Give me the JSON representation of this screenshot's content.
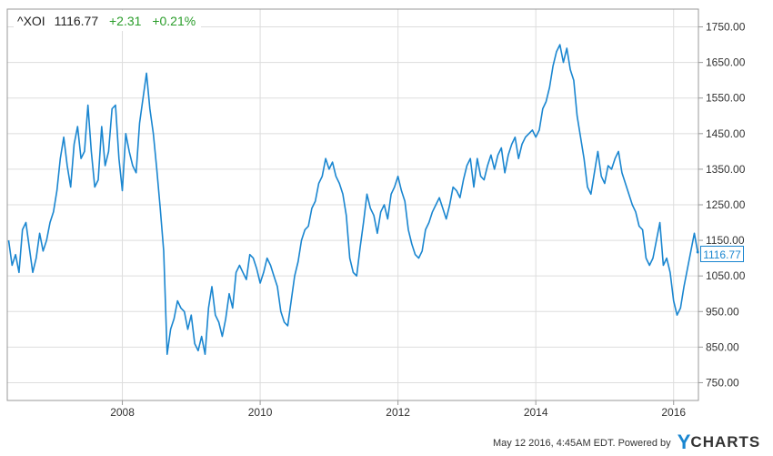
{
  "header": {
    "symbol": "^XOI",
    "price": "1116.77",
    "change": "+2.31",
    "change_pct": "+0.21%",
    "change_color": "#2a9d2a"
  },
  "last_price_tag": "1116.77",
  "footer": {
    "timestamp": "May 12 2016, 4:45AM EDT.",
    "powered_by": "Powered by",
    "brand_y": "Y",
    "brand_rest": "CHARTS"
  },
  "colors": {
    "line": "#1a86d0",
    "grid": "#dddddd",
    "axis": "#999999"
  },
  "chart_data": {
    "type": "line",
    "title": "",
    "xlabel": "",
    "ylabel": "",
    "xlim": [
      2006.33,
      2016.36
    ],
    "ylim": [
      700,
      1800
    ],
    "x_ticks": [
      2008,
      2010,
      2012,
      2014,
      2016
    ],
    "x_tick_labels": [
      "2008",
      "2010",
      "2012",
      "2014",
      "2016"
    ],
    "y_ticks": [
      750,
      850,
      950,
      1050,
      1150,
      1250,
      1350,
      1450,
      1550,
      1650,
      1750
    ],
    "y_tick_labels": [
      "750.00",
      "850.00",
      "950.00",
      "1050.00",
      "1150.00",
      "1250.00",
      "1350.00",
      "1450.00",
      "1550.00",
      "1650.00",
      "1750.00"
    ],
    "grid": true,
    "series": [
      {
        "x": [
          2006.35,
          2006.4,
          2006.45,
          2006.5,
          2006.55,
          2006.6,
          2006.65,
          2006.7,
          2006.75,
          2006.8,
          2006.85,
          2006.9,
          2006.95,
          2007.0,
          2007.05,
          2007.1,
          2007.15,
          2007.2,
          2007.25,
          2007.3,
          2007.35,
          2007.4,
          2007.45,
          2007.5,
          2007.55,
          2007.6,
          2007.65,
          2007.7,
          2007.75,
          2007.8,
          2007.85,
          2007.9,
          2007.95,
          2008.0,
          2008.05,
          2008.1,
          2008.15,
          2008.2,
          2008.25,
          2008.3,
          2008.35,
          2008.4,
          2008.45,
          2008.5,
          2008.55,
          2008.6,
          2008.65,
          2008.7,
          2008.75,
          2008.8,
          2008.85,
          2008.9,
          2008.95,
          2009.0,
          2009.05,
          2009.1,
          2009.15,
          2009.2,
          2009.25,
          2009.3,
          2009.35,
          2009.4,
          2009.45,
          2009.5,
          2009.55,
          2009.6,
          2009.65,
          2009.7,
          2009.75,
          2009.8,
          2009.85,
          2009.9,
          2009.95,
          2010.0,
          2010.05,
          2010.1,
          2010.15,
          2010.2,
          2010.25,
          2010.3,
          2010.35,
          2010.4,
          2010.45,
          2010.5,
          2010.55,
          2010.6,
          2010.65,
          2010.7,
          2010.75,
          2010.8,
          2010.85,
          2010.9,
          2010.95,
          2011.0,
          2011.05,
          2011.1,
          2011.15,
          2011.2,
          2011.25,
          2011.3,
          2011.35,
          2011.4,
          2011.45,
          2011.5,
          2011.55,
          2011.6,
          2011.65,
          2011.7,
          2011.75,
          2011.8,
          2011.85,
          2011.9,
          2011.95,
          2012.0,
          2012.05,
          2012.1,
          2012.15,
          2012.2,
          2012.25,
          2012.3,
          2012.35,
          2012.4,
          2012.45,
          2012.5,
          2012.55,
          2012.6,
          2012.65,
          2012.7,
          2012.75,
          2012.8,
          2012.85,
          2012.9,
          2012.95,
          2013.0,
          2013.05,
          2013.1,
          2013.15,
          2013.2,
          2013.25,
          2013.3,
          2013.35,
          2013.4,
          2013.45,
          2013.5,
          2013.55,
          2013.6,
          2013.65,
          2013.7,
          2013.75,
          2013.8,
          2013.85,
          2013.9,
          2013.95,
          2014.0,
          2014.05,
          2014.1,
          2014.15,
          2014.2,
          2014.25,
          2014.3,
          2014.35,
          2014.4,
          2014.45,
          2014.5,
          2014.55,
          2014.6,
          2014.65,
          2014.7,
          2014.75,
          2014.8,
          2014.85,
          2014.9,
          2014.95,
          2015.0,
          2015.05,
          2015.1,
          2015.15,
          2015.2,
          2015.25,
          2015.3,
          2015.35,
          2015.4,
          2015.45,
          2015.5,
          2015.55,
          2015.6,
          2015.65,
          2015.7,
          2015.75,
          2015.8,
          2015.85,
          2015.9,
          2015.95,
          2016.0,
          2016.05,
          2016.1,
          2016.15,
          2016.2,
          2016.25,
          2016.3,
          2016.35
        ],
        "y": [
          1150,
          1080,
          1110,
          1060,
          1180,
          1200,
          1130,
          1060,
          1100,
          1170,
          1120,
          1150,
          1200,
          1230,
          1290,
          1380,
          1440,
          1360,
          1300,
          1420,
          1470,
          1380,
          1400,
          1530,
          1400,
          1300,
          1320,
          1470,
          1360,
          1400,
          1520,
          1530,
          1380,
          1290,
          1450,
          1400,
          1360,
          1340,
          1480,
          1550,
          1620,
          1520,
          1450,
          1350,
          1240,
          1120,
          830,
          900,
          930,
          980,
          960,
          950,
          900,
          940,
          860,
          840,
          880,
          830,
          960,
          1020,
          940,
          920,
          880,
          930,
          1000,
          960,
          1060,
          1080,
          1060,
          1040,
          1110,
          1100,
          1070,
          1030,
          1060,
          1100,
          1080,
          1050,
          1020,
          950,
          920,
          910,
          980,
          1050,
          1090,
          1150,
          1180,
          1190,
          1240,
          1260,
          1310,
          1330,
          1380,
          1350,
          1370,
          1330,
          1310,
          1280,
          1220,
          1100,
          1060,
          1050,
          1130,
          1200,
          1280,
          1240,
          1220,
          1170,
          1230,
          1250,
          1210,
          1280,
          1300,
          1330,
          1290,
          1260,
          1180,
          1140,
          1110,
          1100,
          1120,
          1180,
          1200,
          1230,
          1250,
          1270,
          1240,
          1210,
          1250,
          1300,
          1290,
          1270,
          1320,
          1360,
          1380,
          1300,
          1380,
          1330,
          1320,
          1360,
          1390,
          1350,
          1390,
          1410,
          1340,
          1390,
          1420,
          1440,
          1380,
          1420,
          1440,
          1450,
          1460,
          1440,
          1460,
          1520,
          1540,
          1580,
          1640,
          1680,
          1700,
          1650,
          1690,
          1630,
          1600,
          1500,
          1440,
          1380,
          1300,
          1280,
          1340,
          1400,
          1330,
          1310,
          1360,
          1350,
          1380,
          1400,
          1340,
          1310,
          1280,
          1250,
          1230,
          1190,
          1180,
          1100,
          1080,
          1100,
          1150,
          1200,
          1080,
          1100,
          1060,
          980,
          940,
          960,
          1020,
          1070,
          1120,
          1170,
          1117
        ]
      }
    ]
  }
}
